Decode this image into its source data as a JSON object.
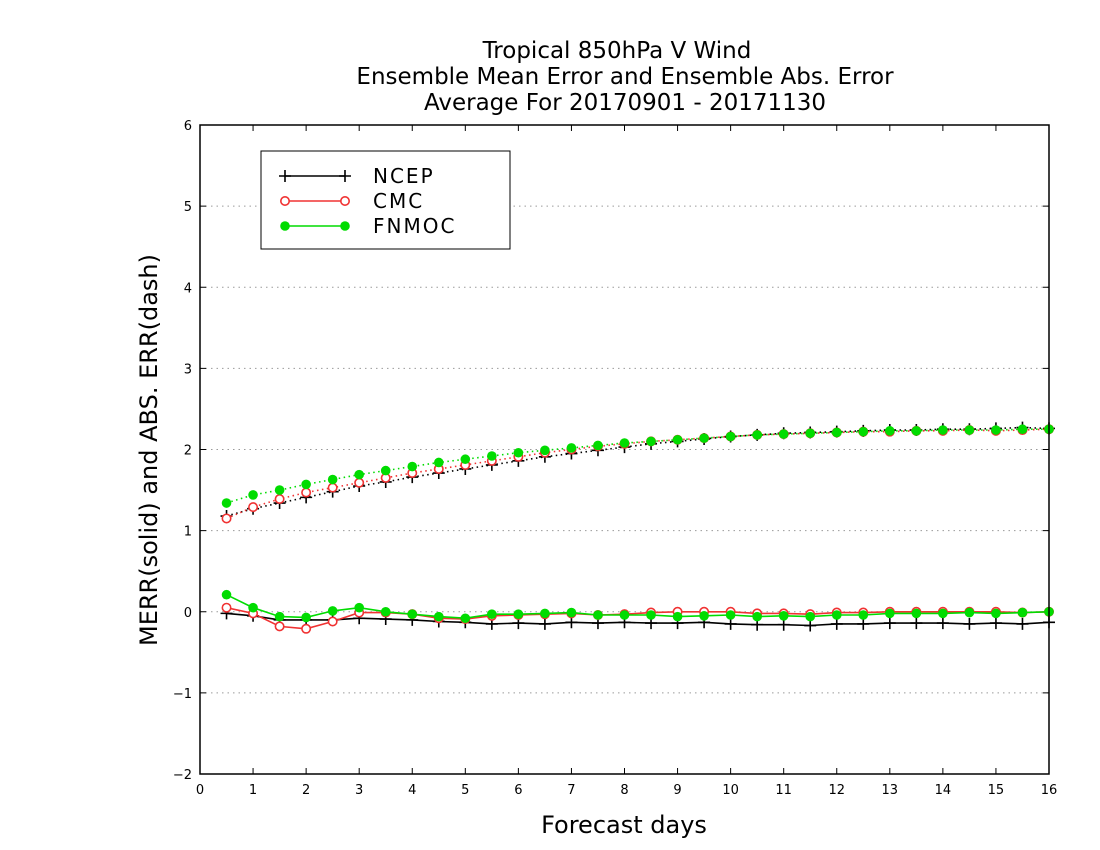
{
  "chart_data": {
    "type": "line",
    "title_lines": [
      "Tropical 850hPa V Wind",
      "Ensemble Mean Error and Ensemble Abs. Error",
      "Average For 20170901 - 20171130"
    ],
    "xlabel": "Forecast days",
    "ylabel": "MERR(solid) and ABS. ERR(dash)",
    "xlim": [
      0,
      16
    ],
    "ylim": [
      -2,
      6
    ],
    "xticks": [
      "0",
      "1",
      "2",
      "3",
      "4",
      "5",
      "6",
      "7",
      "8",
      "9",
      "10",
      "11",
      "12",
      "13",
      "14",
      "15",
      "16"
    ],
    "yticks": [
      "−2",
      "−1",
      "0",
      "1",
      "2",
      "3",
      "4",
      "5",
      "6"
    ],
    "grid": true,
    "legend_position": "top-left",
    "x": [
      0.5,
      1,
      1.5,
      2,
      2.5,
      3,
      3.5,
      4,
      4.5,
      5,
      5.5,
      6,
      6.5,
      7,
      7.5,
      8,
      8.5,
      9,
      9.5,
      10,
      10.5,
      11,
      11.5,
      12,
      12.5,
      13,
      13.5,
      14,
      14.5,
      15,
      15.5,
      16
    ],
    "series": [
      {
        "name": "NCEP",
        "color": "#000000",
        "marker": "plus",
        "merr": [
          -0.02,
          -0.05,
          -0.1,
          -0.1,
          -0.1,
          -0.08,
          -0.09,
          -0.1,
          -0.12,
          -0.13,
          -0.15,
          -0.14,
          -0.15,
          -0.13,
          -0.14,
          -0.13,
          -0.14,
          -0.14,
          -0.13,
          -0.15,
          -0.16,
          -0.16,
          -0.17,
          -0.15,
          -0.15,
          -0.14,
          -0.14,
          -0.14,
          -0.15,
          -0.14,
          -0.15,
          -0.13
        ],
        "abs_err": [
          1.18,
          1.27,
          1.34,
          1.41,
          1.48,
          1.55,
          1.6,
          1.66,
          1.71,
          1.76,
          1.81,
          1.86,
          1.91,
          1.95,
          1.99,
          2.03,
          2.07,
          2.1,
          2.13,
          2.16,
          2.18,
          2.2,
          2.21,
          2.22,
          2.23,
          2.24,
          2.24,
          2.25,
          2.25,
          2.26,
          2.27,
          2.26
        ]
      },
      {
        "name": "CMC",
        "color": "#f03232",
        "marker": "open-circle",
        "merr": [
          0.05,
          -0.02,
          -0.18,
          -0.21,
          -0.12,
          -0.01,
          -0.01,
          -0.03,
          -0.08,
          -0.09,
          -0.05,
          -0.04,
          -0.03,
          -0.02,
          -0.04,
          -0.03,
          -0.01,
          0.0,
          0.0,
          0.0,
          -0.02,
          -0.02,
          -0.03,
          -0.01,
          -0.01,
          0.0,
          0.0,
          0.0,
          0.0,
          0.0,
          -0.01,
          0.0
        ],
        "abs_err": [
          1.15,
          1.29,
          1.39,
          1.47,
          1.53,
          1.59,
          1.65,
          1.71,
          1.76,
          1.81,
          1.86,
          1.91,
          1.96,
          2.0,
          2.04,
          2.07,
          2.1,
          2.12,
          2.14,
          2.16,
          2.18,
          2.19,
          2.2,
          2.21,
          2.22,
          2.22,
          2.23,
          2.23,
          2.24,
          2.23,
          2.24,
          2.25
        ]
      },
      {
        "name": "FNMOC",
        "color": "#00dc00",
        "marker": "filled-circle",
        "merr": [
          0.21,
          0.05,
          -0.06,
          -0.07,
          0.01,
          0.05,
          0.0,
          -0.03,
          -0.06,
          -0.08,
          -0.03,
          -0.03,
          -0.02,
          -0.01,
          -0.04,
          -0.04,
          -0.04,
          -0.06,
          -0.05,
          -0.04,
          -0.06,
          -0.05,
          -0.06,
          -0.04,
          -0.04,
          -0.02,
          -0.02,
          -0.02,
          -0.01,
          -0.02,
          -0.01,
          0.0
        ],
        "abs_err": [
          1.34,
          1.44,
          1.5,
          1.57,
          1.63,
          1.69,
          1.74,
          1.79,
          1.84,
          1.88,
          1.92,
          1.96,
          1.99,
          2.02,
          2.05,
          2.08,
          2.1,
          2.12,
          2.14,
          2.16,
          2.18,
          2.19,
          2.2,
          2.21,
          2.22,
          2.23,
          2.23,
          2.24,
          2.24,
          2.24,
          2.25,
          2.25
        ]
      }
    ]
  }
}
